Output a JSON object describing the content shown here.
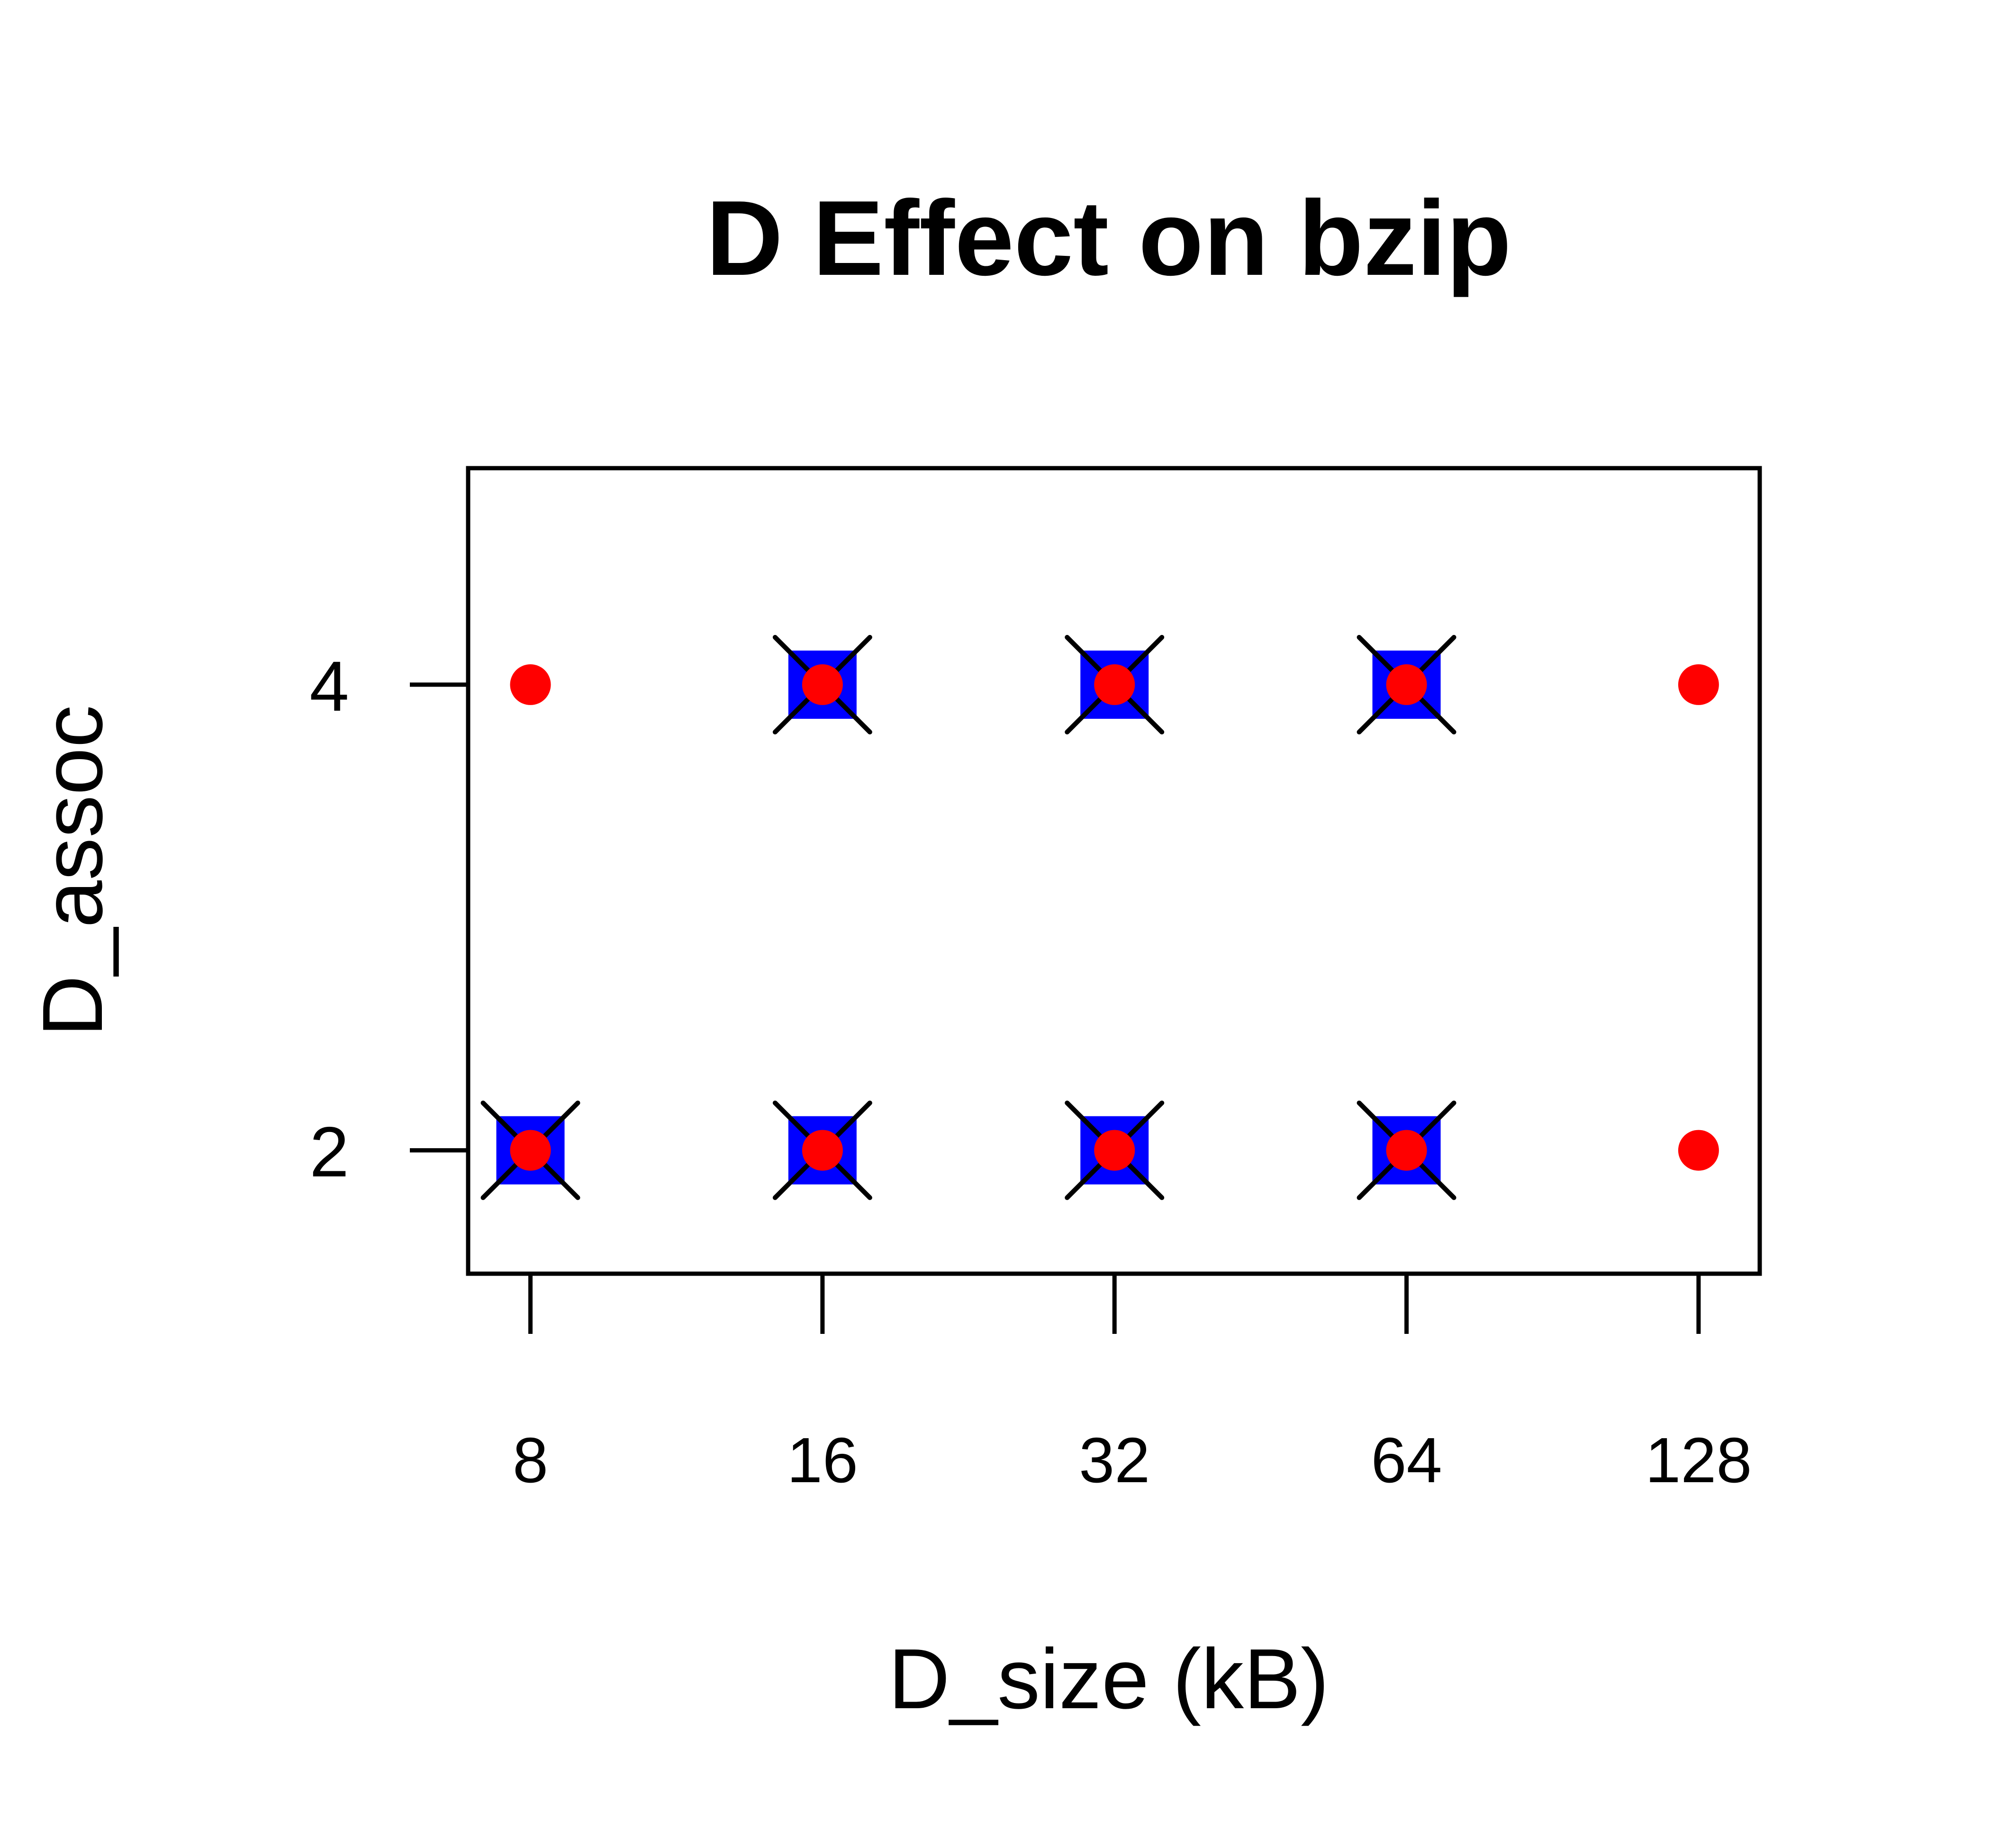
{
  "chart_data": {
    "type": "scatter",
    "title": "D Effect on bzip",
    "xlabel": "D_size (kB)",
    "ylabel": "D_assoc",
    "x_scale": "log2",
    "x_ticks": [
      8,
      16,
      32,
      64,
      128
    ],
    "x_tick_labels": [
      "8",
      "16",
      "32",
      "64",
      "128"
    ],
    "y_ticks": [
      2,
      4
    ],
    "y_tick_labels": [
      "2",
      "4"
    ],
    "xlim": [
      6.9,
      148
    ],
    "ylim": [
      1.47,
      4.93
    ],
    "grid": false,
    "legend": "none",
    "series": [
      {
        "marker": "square",
        "color": "#0000ff",
        "points": [
          {
            "x": 8,
            "y": 2
          },
          {
            "x": 16,
            "y": 2
          },
          {
            "x": 32,
            "y": 2
          },
          {
            "x": 64,
            "y": 2
          },
          {
            "x": 16,
            "y": 4
          },
          {
            "x": 32,
            "y": 4
          },
          {
            "x": 64,
            "y": 4
          }
        ]
      },
      {
        "marker": "x",
        "color": "#000000",
        "points": [
          {
            "x": 8,
            "y": 2
          },
          {
            "x": 16,
            "y": 2
          },
          {
            "x": 32,
            "y": 2
          },
          {
            "x": 64,
            "y": 2
          },
          {
            "x": 16,
            "y": 4
          },
          {
            "x": 32,
            "y": 4
          },
          {
            "x": 64,
            "y": 4
          }
        ]
      },
      {
        "marker": "circle",
        "color": "#ff0000",
        "points": [
          {
            "x": 8,
            "y": 2
          },
          {
            "x": 16,
            "y": 2
          },
          {
            "x": 32,
            "y": 2
          },
          {
            "x": 64,
            "y": 2
          },
          {
            "x": 128,
            "y": 2
          },
          {
            "x": 8,
            "y": 4
          },
          {
            "x": 16,
            "y": 4
          },
          {
            "x": 32,
            "y": 4
          },
          {
            "x": 64,
            "y": 4
          },
          {
            "x": 128,
            "y": 4
          }
        ]
      }
    ]
  }
}
